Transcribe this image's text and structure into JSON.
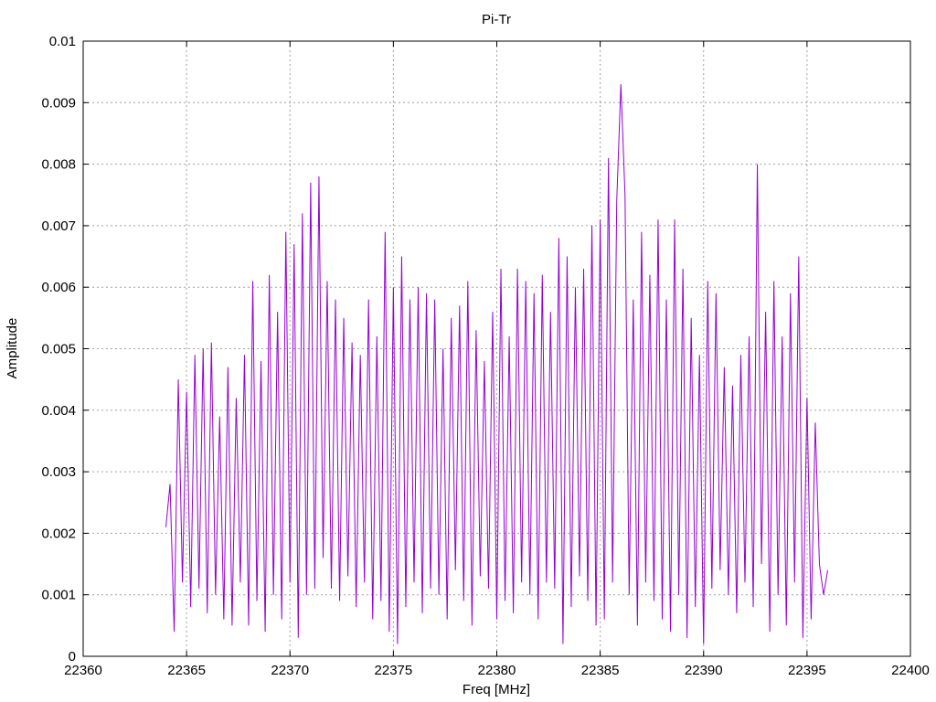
{
  "chart_data": {
    "type": "line",
    "title": "Pi-Tr",
    "xlabel": "Freq [MHz]",
    "ylabel": "Amplitude",
    "xlim": [
      22360,
      22400
    ],
    "ylim": [
      0,
      0.01
    ],
    "xticks": [
      22360,
      22365,
      22370,
      22375,
      22380,
      22385,
      22390,
      22395,
      22400
    ],
    "xtick_labels": [
      "22360",
      "22365",
      "22370",
      "22375",
      "22380",
      "22385",
      "22390",
      "22395",
      "22400"
    ],
    "yticks": [
      0,
      0.001,
      0.002,
      0.003,
      0.004,
      0.005,
      0.006,
      0.007,
      0.008,
      0.009,
      0.01
    ],
    "ytick_labels": [
      "0",
      "0.001",
      "0.002",
      "0.003",
      "0.004",
      "0.005",
      "0.006",
      "0.007",
      "0.008",
      "0.009",
      "0.01"
    ],
    "grid": true,
    "legend": "none",
    "series_color": "#9400d3",
    "series": [
      {
        "x": [
          22364.0,
          22364.2,
          22364.4,
          22364.6,
          22364.8,
          22365.0,
          22365.2,
          22365.4,
          22365.6,
          22365.8,
          22366.0,
          22366.2,
          22366.4,
          22366.6,
          22366.8,
          22367.0,
          22367.2,
          22367.4,
          22367.6,
          22367.8,
          22368.0,
          22368.2,
          22368.4,
          22368.6,
          22368.8,
          22369.0,
          22369.2,
          22369.4,
          22369.6,
          22369.8,
          22370.0,
          22370.2,
          22370.4,
          22370.6,
          22370.8,
          22371.0,
          22371.2,
          22371.4,
          22371.6,
          22371.8,
          22372.0,
          22372.2,
          22372.4,
          22372.6,
          22372.8,
          22373.0,
          22373.2,
          22373.4,
          22373.6,
          22373.8,
          22374.0,
          22374.2,
          22374.4,
          22374.6,
          22374.8,
          22375.0,
          22375.2,
          22375.4,
          22375.6,
          22375.8,
          22376.0,
          22376.2,
          22376.4,
          22376.6,
          22376.8,
          22377.0,
          22377.2,
          22377.4,
          22377.6,
          22377.8,
          22378.0,
          22378.2,
          22378.4,
          22378.6,
          22378.8,
          22379.0,
          22379.2,
          22379.4,
          22379.6,
          22379.8,
          22380.0,
          22380.2,
          22380.4,
          22380.6,
          22380.8,
          22381.0,
          22381.2,
          22381.4,
          22381.6,
          22381.8,
          22382.0,
          22382.2,
          22382.4,
          22382.6,
          22382.8,
          22383.0,
          22383.2,
          22383.4,
          22383.6,
          22383.8,
          22384.0,
          22384.2,
          22384.4,
          22384.6,
          22384.8,
          22385.0,
          22385.2,
          22385.4,
          22385.6,
          22385.8,
          22386.0,
          22386.2,
          22386.4,
          22386.6,
          22386.8,
          22387.0,
          22387.2,
          22387.4,
          22387.6,
          22387.8,
          22388.0,
          22388.2,
          22388.4,
          22388.6,
          22388.8,
          22389.0,
          22389.2,
          22389.4,
          22389.6,
          22389.8,
          22390.0,
          22390.2,
          22390.4,
          22390.6,
          22390.8,
          22391.0,
          22391.2,
          22391.4,
          22391.6,
          22391.8,
          22392.0,
          22392.2,
          22392.4,
          22392.6,
          22392.8,
          22393.0,
          22393.2,
          22393.4,
          22393.6,
          22393.8,
          22394.0,
          22394.2,
          22394.4,
          22394.6,
          22394.8,
          22395.0,
          22395.2,
          22395.4,
          22395.6,
          22395.8,
          22396.0
        ],
        "values": [
          0.0021,
          0.0028,
          0.0004,
          0.0045,
          0.0012,
          0.0043,
          0.0008,
          0.0049,
          0.0011,
          0.005,
          0.0007,
          0.0051,
          0.001,
          0.0039,
          0.0006,
          0.0047,
          0.0005,
          0.0042,
          0.0012,
          0.0049,
          0.0005,
          0.0061,
          0.0009,
          0.0048,
          0.0004,
          0.0062,
          0.001,
          0.0056,
          0.0006,
          0.0069,
          0.0012,
          0.0067,
          0.0003,
          0.0072,
          0.001,
          0.0077,
          0.0011,
          0.0078,
          0.0016,
          0.0061,
          0.0011,
          0.0058,
          0.0009,
          0.0055,
          0.0013,
          0.0051,
          0.0008,
          0.0049,
          0.0012,
          0.0058,
          0.0006,
          0.0052,
          0.0009,
          0.0069,
          0.0004,
          0.006,
          0.0002,
          0.0065,
          0.0008,
          0.0058,
          0.0012,
          0.006,
          0.0007,
          0.0059,
          0.0011,
          0.0058,
          0.001,
          0.005,
          0.0006,
          0.0055,
          0.0014,
          0.0057,
          0.0009,
          0.0061,
          0.0005,
          0.0053,
          0.0013,
          0.0048,
          0.0011,
          0.0056,
          0.0006,
          0.0063,
          0.0009,
          0.0052,
          0.0007,
          0.0063,
          0.0012,
          0.0061,
          0.001,
          0.0059,
          0.0006,
          0.0062,
          0.0012,
          0.0056,
          0.0011,
          0.0068,
          0.0002,
          0.0065,
          0.0008,
          0.006,
          0.0013,
          0.0063,
          0.0009,
          0.007,
          0.0005,
          0.0071,
          0.0006,
          0.0081,
          0.0012,
          0.0074,
          0.0093,
          0.0075,
          0.001,
          0.0058,
          0.0005,
          0.0069,
          0.0012,
          0.0062,
          0.0009,
          0.0071,
          0.0006,
          0.0058,
          0.0004,
          0.0071,
          0.001,
          0.0063,
          0.0003,
          0.0055,
          0.0008,
          0.0049,
          0.0002,
          0.0061,
          0.0011,
          0.0059,
          0.0014,
          0.0047,
          0.001,
          0.0044,
          0.0007,
          0.0049,
          0.0012,
          0.0052,
          0.0008,
          0.008,
          0.0015,
          0.0056,
          0.0004,
          0.0061,
          0.001,
          0.0052,
          0.0005,
          0.0059,
          0.0012,
          0.0065,
          0.0003,
          0.0042,
          0.0006,
          0.0038,
          0.0015,
          0.001,
          0.0014
        ]
      }
    ]
  }
}
